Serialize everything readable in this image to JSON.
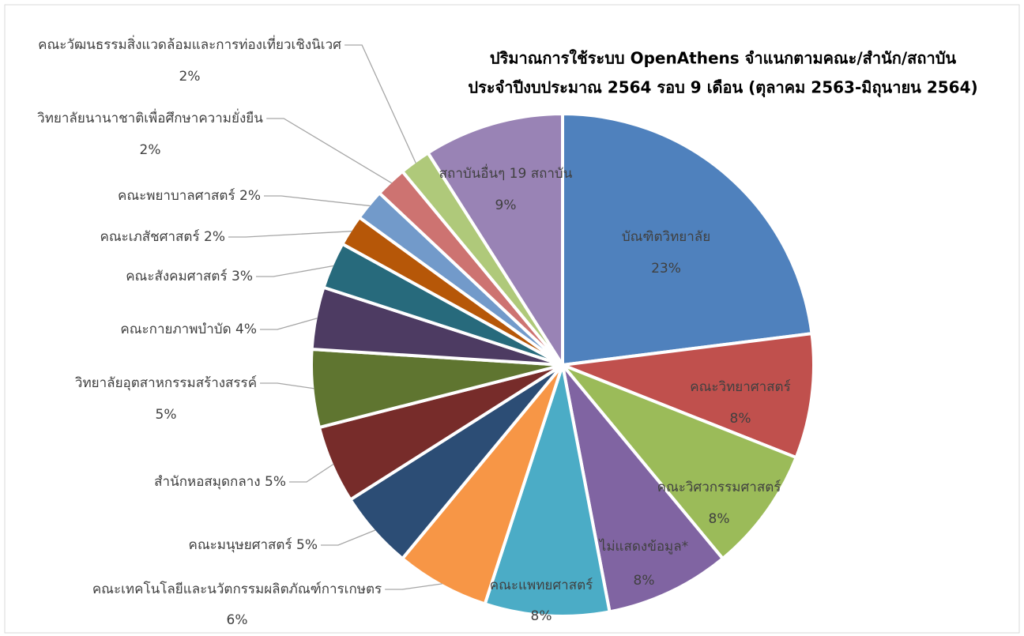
{
  "chart_data": {
    "type": "pie",
    "title": "ปริมาณการใช้ระบบ OpenAthens จำแนกตามคณะ/สำนัก/สถาบัน",
    "subtitle": "ประจำปีงบประมาณ 2564 รอบ 9 เดือน (ตุลาคม 2563-มิถุนายน 2564)",
    "categories": [
      "บัณฑิตวิทยาลัย",
      "คณะวิทยาศาสตร์",
      "คณะวิศวกรรมศาสตร์",
      "ไม่แสดงข้อมูล*",
      "คณะแพทยศาสตร์",
      "คณะเทคโนโลยีและนวัตกรรมผลิตภัณฑ์การเกษตร",
      "คณะมนุษยศาสตร์",
      "สำนักหอสมุดกลาง",
      "วิทยาลัยอุตสาหกรรมสร้างสรรค์",
      "คณะกายภาพบำบัด",
      "คณะสังคมศาสตร์",
      "คณะเภสัชศาสตร์",
      "คณะพยาบาลศาสตร์",
      "วิทยาลัยนานาชาติเพื่อศึกษาความยั่งยืน",
      "คณะวัฒนธรรมสิ่งแวดล้อมและการท่องเที่ยวเชิงนิเวศ",
      "สถาบันอื่นๆ 19 สถาบัน"
    ],
    "values": [
      23,
      8,
      8,
      8,
      8,
      6,
      5,
      5,
      5,
      4,
      3,
      2,
      2,
      2,
      2,
      9
    ],
    "value_labels": [
      "23%",
      "8%",
      "8%",
      "8%",
      "8%",
      "6%",
      "5%",
      "5%",
      "5%",
      "4%",
      "3%",
      "2%",
      "2%",
      "2%",
      "2%",
      "9%"
    ],
    "colors": [
      "#4f81bd",
      "#c0504d",
      "#9bbb59",
      "#8064a2",
      "#4bacc6",
      "#f79646",
      "#2c4d75",
      "#772c2a",
      "#5f7530",
      "#4d3b62",
      "#276a7c",
      "#b65708",
      "#729aca",
      "#cd7371",
      "#afc97a",
      "#9983b5"
    ]
  }
}
